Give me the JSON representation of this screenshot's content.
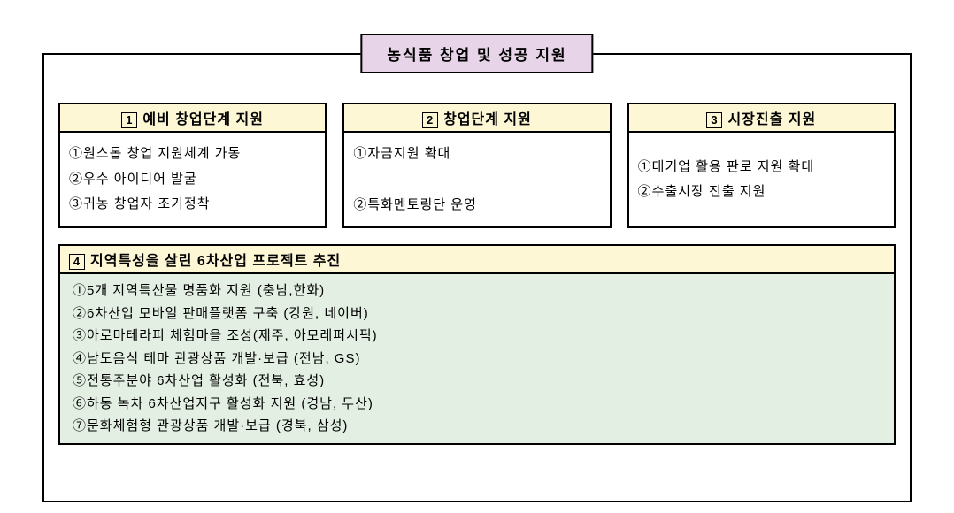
{
  "main_title": "농식품 창업 및 성공 지원",
  "colors": {
    "title_bg": "#e8d4e8",
    "header_bg": "#fdf7d5",
    "wide_body_bg": "#e2efe2",
    "border": "#000000",
    "page_bg": "#ffffff"
  },
  "typography": {
    "font_family": "Malgun Gothic",
    "title_fontsize": 17,
    "header_fontsize": 16,
    "body_fontsize": 15
  },
  "boxes": [
    {
      "num": "1",
      "title": "예비 창업단계 지원",
      "items": [
        "①원스톱 창업 지원체계 가동",
        "②우수 아이디어 발굴",
        "③귀농 창업자 조기정착"
      ],
      "align": "top"
    },
    {
      "num": "2",
      "title": "창업단계 지원",
      "items": [
        "①자금지원 확대",
        "②특화멘토링단 운영"
      ],
      "align": "split"
    },
    {
      "num": "3",
      "title": "시장진출 지원",
      "items": [
        "①대기업 활용 판로 지원 확대",
        "②수출시장 진출 지원"
      ],
      "align": "center"
    }
  ],
  "wide": {
    "num": "4",
    "title": "지역특성을 살린 6차산업 프로젝트 추진",
    "items": [
      "①5개 지역특산물 명품화 지원 (충남,한화)",
      "②6차산업 모바일 판매플랫폼 구축 (강원, 네이버)",
      "③아로마테라피 체험마을 조성(제주, 아모레퍼시픽)",
      "④남도음식 테마 관광상품 개발·보급 (전남, GS)",
      "⑤전통주분야 6차산업 활성화 (전북, 효성)",
      "⑥하동 녹차 6차산업지구 활성화 지원 (경남, 두산)",
      "⑦문화체험형 관광상품 개발·보급 (경북, 삼성)"
    ]
  }
}
